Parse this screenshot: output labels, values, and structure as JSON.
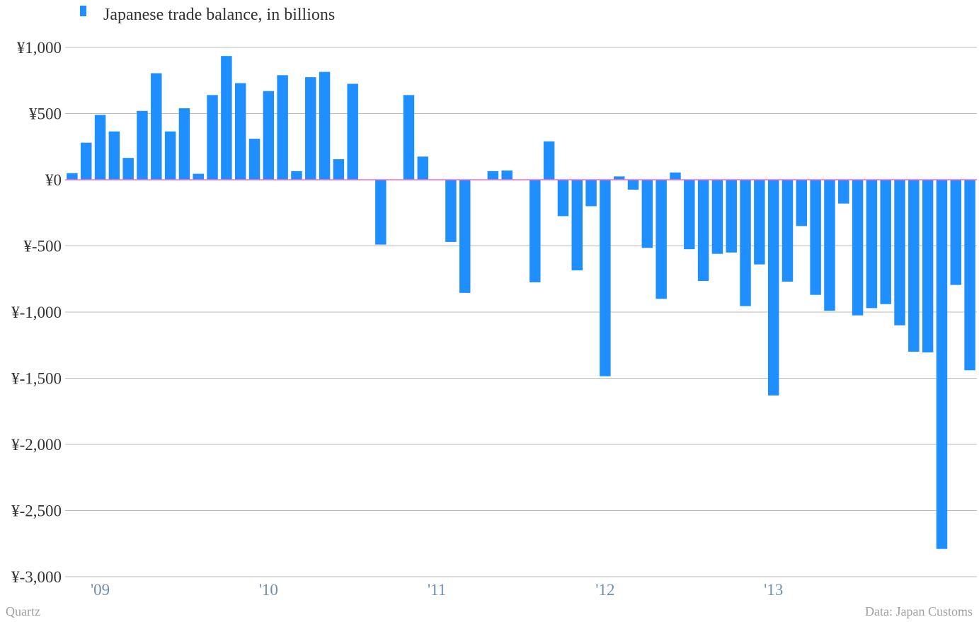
{
  "chart_data": {
    "type": "bar",
    "title": "Japanese trade balance, in billions",
    "legend": [
      {
        "name": "Japanese trade balance, in billions",
        "color": "#1f8fff"
      }
    ],
    "legend_position": "top-left",
    "xlabel": "",
    "ylabel": "",
    "ylim": [
      -3000,
      1000
    ],
    "yticks": [
      1000,
      500,
      0,
      -500,
      -1000,
      -1500,
      -2000,
      -2500,
      -3000
    ],
    "ytick_labels": [
      "¥1,000",
      "¥500",
      "¥0",
      "¥-500",
      "¥-1,000",
      "¥-1,500",
      "¥-2,000",
      "¥-2,500",
      "¥-3,000"
    ],
    "xticks": [
      {
        "label": "'09",
        "at_index": 2.5
      },
      {
        "label": "'10",
        "at_index": 14.5
      },
      {
        "label": "'11",
        "at_index": 26.5
      },
      {
        "label": "'12",
        "at_index": 38.5
      },
      {
        "label": "'13",
        "at_index": 50.5
      }
    ],
    "grid": true,
    "zero_line_color": "#ff66cc",
    "bar_color": "#1f8fff",
    "series": [
      {
        "name": "Japanese trade balance, in billions",
        "values": [
          50,
          280,
          490,
          365,
          165,
          520,
          805,
          365,
          540,
          45,
          640,
          935,
          730,
          310,
          670,
          790,
          65,
          775,
          815,
          155,
          725,
          0,
          -490,
          0,
          640,
          175,
          0,
          -470,
          -855,
          0,
          65,
          70,
          0,
          -775,
          290,
          -275,
          -685,
          -200,
          -1485,
          25,
          -75,
          -515,
          -900,
          55,
          -525,
          -765,
          -560,
          -550,
          -955,
          -640,
          -1630,
          -770,
          -350,
          -870,
          -990,
          -180,
          -1025,
          -970,
          -940,
          -1100,
          -1300,
          -1305,
          -2790,
          -795,
          -1440
        ]
      }
    ],
    "source": "Data: Japan Customs",
    "credit": "Quartz"
  }
}
